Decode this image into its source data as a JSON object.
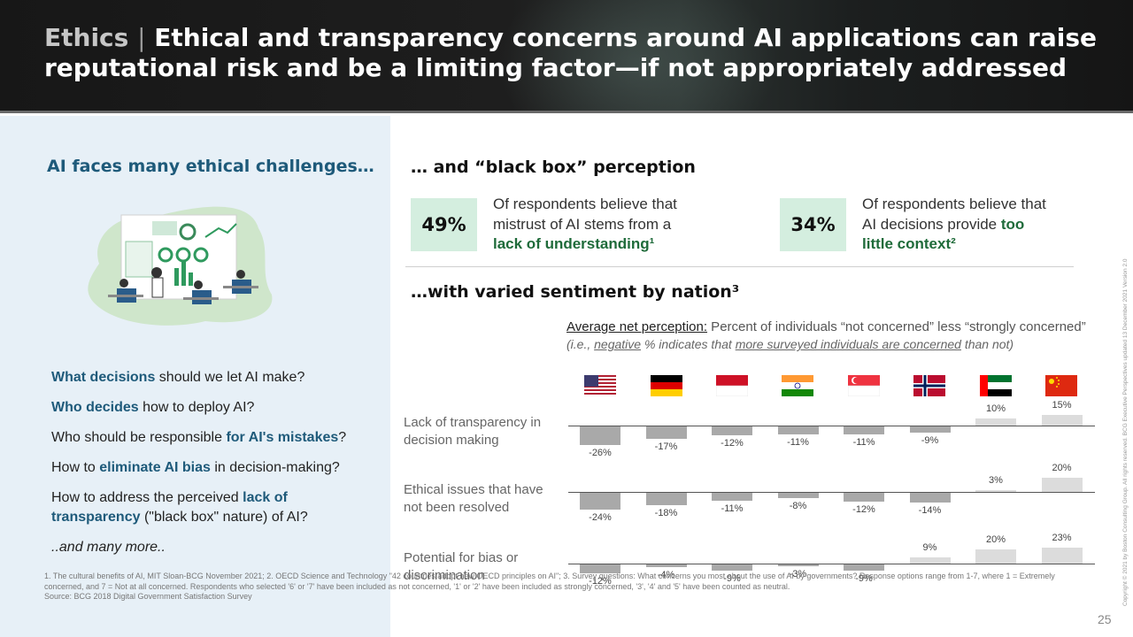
{
  "header": {
    "topic": "Ethics",
    "separator": "|",
    "title": "Ethical and transparency concerns around AI applications can raise reputational risk and be a limiting factor—if not appropriately addressed"
  },
  "left": {
    "heading": "AI faces many ethical challenges…",
    "questions": [
      {
        "bold": "What decisions",
        "rest": " should we let AI make?"
      },
      {
        "bold": "Who decides",
        "rest": " how to deploy AI?"
      },
      {
        "pre": "Who should be responsible ",
        "bold": "for AI's mistakes",
        "rest": "?"
      },
      {
        "pre": "How to ",
        "bold": "eliminate AI bias",
        "rest": " in decision-making?"
      },
      {
        "pre": "How to address the perceived ",
        "bold": "lack of transparency",
        "rest": " (\"black box\" nature) of AI?"
      }
    ],
    "more": "..and many more.."
  },
  "blackbox": {
    "title": "… and “black box” perception",
    "stat1": {
      "value": "49%",
      "text": "Of respondents believe that mistrust of AI stems from a",
      "bold": "lack of understanding¹"
    },
    "stat2": {
      "value": "34%",
      "text": "Of respondents believe that AI decisions provide",
      "bold": "too little context²"
    }
  },
  "sentiment": {
    "title": "…with varied sentiment by nation³",
    "avg_bold": "Average net perception:",
    "avg_rest": " Percent of individuals “not concerned” less “strongly concerned”",
    "note_pre": "(i.e., ",
    "note_u1": "negative",
    "note_mid": " % indicates that ",
    "note_u2": "more surveyed individuals are concerned",
    "note_post": " than not)"
  },
  "chart_data": {
    "type": "bar",
    "categories": [
      "USA",
      "Germany",
      "Indonesia",
      "India",
      "Singapore",
      "Norway",
      "UAE",
      "China"
    ],
    "series": [
      {
        "name": "Lack of transparency in decision making",
        "values": [
          -26,
          -17,
          -12,
          -11,
          -11,
          -9,
          10,
          15
        ]
      },
      {
        "name": "Ethical issues that have not been resolved",
        "values": [
          -24,
          -18,
          -11,
          -8,
          -12,
          -14,
          3,
          20
        ]
      },
      {
        "name": "Potential for bias or discrimination",
        "values": [
          -12,
          -4,
          -9,
          -3,
          -9,
          9,
          20,
          23
        ]
      }
    ],
    "unit": "%",
    "colors": {
      "positive": "#dcdcdc",
      "negative": "#a9a9a9"
    }
  },
  "footnotes": {
    "line1": "1. The cultural benefits of AI, MIT Sloan-BCG November 2021; 2. OECD Science and Technology \"42 countries adopt new OECD principles on AI\"; 3. Survey questions: What concerns you most about the use of AI by governments? Response options range from 1-7, where 1 = Extremely concerned, and 7 = Not at all concerned. Respondents who selected '6' or '7' have been included as not concerned, '1' or '2' have been included as strongly concerned, '3', '4' and '5' have been counted as neutral.",
    "source": "Source: BCG 2018 Digital Government Satisfaction Survey"
  },
  "page_number": "25",
  "copyright": "Copyright © 2021 by Boston Consulting Group. All rights reserved. BCG Executive Perspectives updated 13 December 2021 Version 2.0"
}
